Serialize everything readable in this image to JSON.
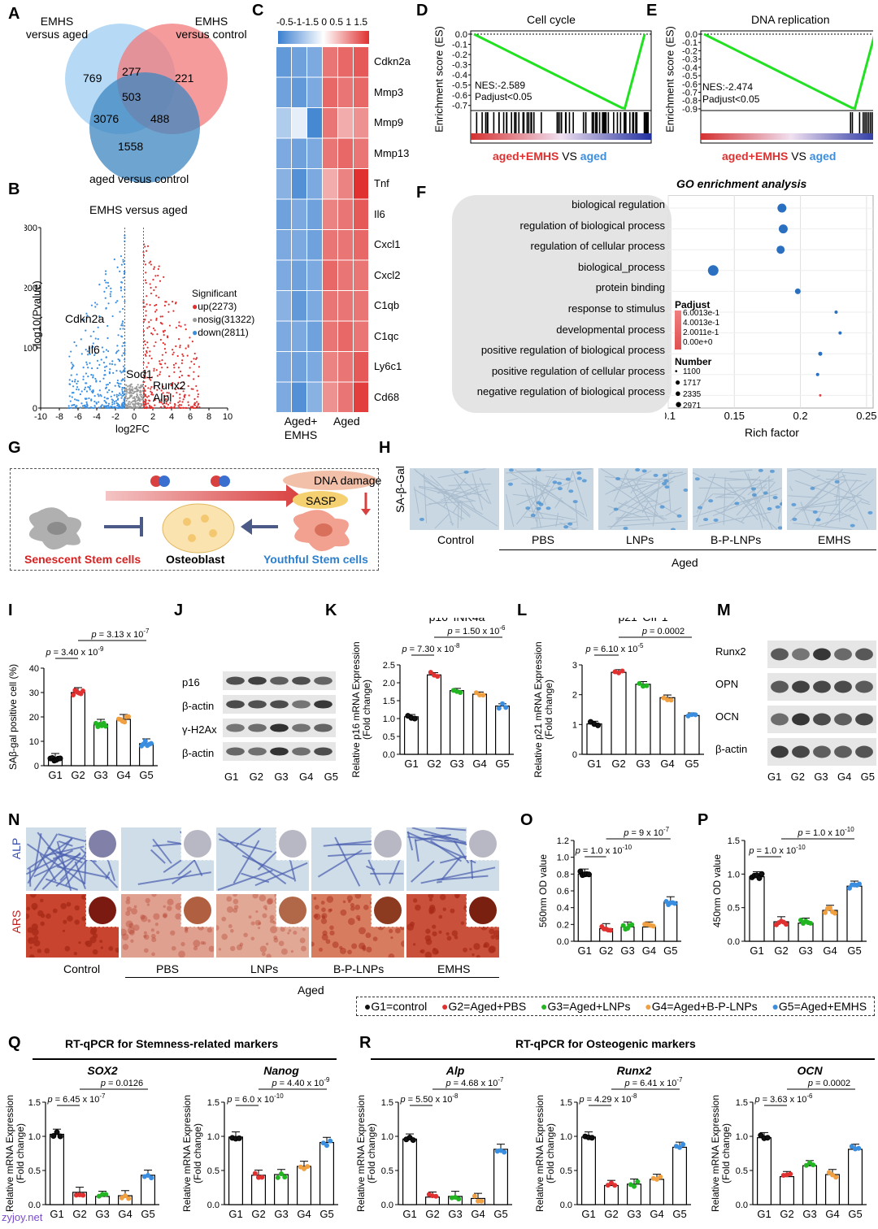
{
  "colors": {
    "red": "#e03030",
    "blue": "#3a8ee0",
    "green": "#22b522",
    "orange": "#f0a040",
    "black": "#111111",
    "venn_blue": "#a9d4f5",
    "venn_red": "#f27a7a",
    "venn_dark": "#3d86c0",
    "gsea_line": "#22e022"
  },
  "panels": {
    "A": "A",
    "B": "B",
    "C": "C",
    "D": "D",
    "E": "E",
    "F": "F",
    "G": "G",
    "H": "H",
    "I": "I",
    "J": "J",
    "K": "K",
    "L": "L",
    "M": "M",
    "N": "N",
    "O": "O",
    "P": "P",
    "Q": "Q",
    "R": "R"
  },
  "venn": {
    "label_left": "EMHS\nversus aged",
    "label_right": "EMHS\nversus control",
    "label_bottom": "aged versus control",
    "n_left": "769",
    "n_lr": "277",
    "n_right": "221",
    "n_center": "503",
    "n_lb": "3076",
    "n_rb": "488",
    "n_bottom": "1558"
  },
  "volcano": {
    "title": "EMHS versus aged",
    "ylabel": "-log10(Pvalue)",
    "xlabel": "log2FC",
    "xticks": [
      "-10",
      "-8",
      "-6",
      "-4",
      "-2",
      "0",
      "2",
      "4",
      "6",
      "8",
      "10"
    ],
    "yticks": [
      "0",
      "100",
      "200",
      "300"
    ],
    "legend_title": "Significant",
    "legend": [
      "up(2273)",
      "nosig(31322)",
      "down(2811)"
    ],
    "genes": [
      "Cdkn2a",
      "Il6",
      "Sod1",
      "Runx2",
      "Alpl"
    ]
  },
  "heatmap": {
    "scale": "-0.5-1-1.5 0 0.5 1 1.5",
    "genes": [
      "Cdkn2a",
      "Mmp3",
      "Mmp9",
      "Mmp13",
      "Tnf",
      "Il6",
      "Cxcl1",
      "Cxcl2",
      "C1qb",
      "C1qc",
      "Ly6c1",
      "Cd68"
    ],
    "group1": "Aged+\nEMHS",
    "group2": "Aged"
  },
  "gsea_d": {
    "title": "Cell cycle",
    "ylabel": "Enrichment score (ES)",
    "yticks": [
      "0.0",
      "-0.1",
      "-0.2",
      "-0.3",
      "-0.4",
      "-0.5",
      "-0.6",
      "-0.7"
    ],
    "nes": "NES:-2.589",
    "padj": "Padjust<0.05",
    "cmp1": "aged+EMHS",
    "cmp_vs": "VS",
    "cmp2": "aged"
  },
  "gsea_e": {
    "title": "DNA replication",
    "ylabel": "Enrichment score (ES)",
    "yticks": [
      "0.0",
      "-0.1",
      "-0.2",
      "-0.3",
      "-0.4",
      "-0.5",
      "-0.6",
      "-0.7",
      "-0.8",
      "-0.9"
    ],
    "nes": "NES:-2.474",
    "padj": "Padjust<0.05",
    "cmp1": "aged+EMHS",
    "cmp_vs": "VS",
    "cmp2": "aged"
  },
  "go": {
    "title": "GO enrichment analysis",
    "xlabel": "Rich factor",
    "xticks": [
      "0.1",
      "0.15",
      "0.2",
      "0.25"
    ],
    "terms": [
      "biological regulation",
      "regulation of biological process",
      "regulation of cellular process",
      "biological_process",
      "protein binding",
      "response to stimulus",
      "developmental process",
      "positive regulation of biological process",
      "positive regulation of cellular process",
      "negative regulation of biological process"
    ],
    "padj_title": "Padjust",
    "padj_ticks": [
      "6.0013e-1",
      "4.0013e-1",
      "2.0011e-1",
      "0.00e+0"
    ],
    "num_title": "Number",
    "num_ticks": [
      "1100",
      "1717",
      "2335",
      "2971"
    ]
  },
  "schematic": {
    "dna": "DNA damage",
    "sasp": "SASP",
    "senescent": "Senescent Stem cells",
    "osteoblast": "Osteoblast",
    "youthful": "Youthful Stem cells"
  },
  "sagal": {
    "ylabel": "SA-β-Gal",
    "labels": [
      "Control",
      "PBS",
      "LNPs",
      "B-P-LNPs",
      "EMHS"
    ],
    "aged": "Aged"
  },
  "panel_i": {
    "ylabel": "SAβ-gal positive cell (%)",
    "yticks": [
      "0",
      "10",
      "20",
      "30",
      "40"
    ],
    "p1": "p = 3.40 x 10-9",
    "p2": "p = 3.13 x 10-7"
  },
  "groups": [
    "G1",
    "G2",
    "G3",
    "G4",
    "G5"
  ],
  "blot_j": {
    "rows": [
      "p16",
      "β-actin",
      "γ-H2Ax",
      "β-actin"
    ]
  },
  "panel_k": {
    "title": "p16^INK4a",
    "ylabel": "Relative p16 mRNA Expression\n(Fold change)",
    "yticks": [
      "0.0",
      "0.5",
      "1.0",
      "1.5",
      "2.0",
      "2.5"
    ],
    "p1": "p = 7.30 x 10-8",
    "p2": "p = 1.50 x 10-6"
  },
  "panel_l": {
    "title": "p21^CIP1",
    "ylabel": "Relative p21 mRNA Expression\n(Fold change)",
    "yticks": [
      "0",
      "1",
      "2",
      "3"
    ],
    "p1": "p = 6.10 x 10-5",
    "p2": "p = 0.0002"
  },
  "blot_m": {
    "rows": [
      "Runx2",
      "OPN",
      "OCN",
      "β-actin"
    ]
  },
  "stain_n": {
    "row1": "ALP",
    "row2": "ARS",
    "labels": [
      "Control",
      "PBS",
      "LNPs",
      "B-P-LNPs",
      "EMHS"
    ],
    "aged": "Aged"
  },
  "panel_o": {
    "ylabel": "560nm OD value",
    "yticks": [
      "0.0",
      "0.2",
      "0.4",
      "0.6",
      "0.8",
      "1.0",
      "1.2"
    ],
    "p1": "p = 1.0 x 10-10",
    "p2": "p = 9 x 10-7"
  },
  "panel_p": {
    "ylabel": "450nm OD value",
    "yticks": [
      "0.0",
      "0.5",
      "1.0",
      "1.5"
    ],
    "p1": "p = 1.0 x 10-10",
    "p2": "p = 1.0 x 10-10"
  },
  "group_legend": [
    "G1=control",
    "G2=Aged+PBS",
    "G3=Aged+LNPs",
    "G4=Aged+B-P-LNPs",
    "G5=Aged+EMHS"
  ],
  "panel_q": {
    "title": "RT-qPCR for Stemness-related markers",
    "ylabel": "Relative mRNA Expression\n(Fold change)",
    "sox2": {
      "name": "SOX2",
      "yticks": [
        "0.0",
        "0.5",
        "1.0",
        "1.5"
      ],
      "p1": "p = 6.45 x 10-7",
      "p2": "p = 0.0126"
    },
    "nanog": {
      "name": "Nanog",
      "yticks": [
        "0.0",
        "0.5",
        "1.0",
        "1.5"
      ],
      "p1": "p = 6.0 x 10-10",
      "p2": "p = 4.40 x 10-9"
    }
  },
  "panel_r": {
    "title": "RT-qPCR for Osteogenic markers",
    "ylabel": "Relative mRNA Expression\n(Fold change)",
    "alp": {
      "name": "Alp",
      "yticks": [
        "0.0",
        "0.5",
        "1.0",
        "1.5"
      ],
      "p1": "p = 5.50 x 10-8",
      "p2": "p = 4.68 x 10-7"
    },
    "runx2": {
      "name": "Runx2",
      "yticks": [
        "0.0",
        "0.5",
        "1.0",
        "1.5"
      ],
      "p1": "p = 4.29 x 10-8",
      "p2": "p = 6.41 x 10-7"
    },
    "ocn": {
      "name": "OCN",
      "yticks": [
        "0.0",
        "0.5",
        "1.0",
        "1.5"
      ],
      "p1": "p = 3.63 x 10-6",
      "p2": "p = 0.0002"
    }
  },
  "watermark": "zyjoy.net",
  "chart_data": [
    {
      "type": "bar",
      "id": "I",
      "categories": [
        "G1",
        "G2",
        "G3",
        "G4",
        "G5"
      ],
      "values": [
        3,
        30,
        17,
        19,
        9
      ],
      "ylim": [
        0,
        40
      ]
    },
    {
      "type": "bar",
      "id": "K",
      "categories": [
        "G1",
        "G2",
        "G3",
        "G4",
        "G5"
      ],
      "values": [
        1.05,
        2.22,
        1.78,
        1.68,
        1.35
      ],
      "ylim": [
        0,
        2.5
      ]
    },
    {
      "type": "bar",
      "id": "L",
      "categories": [
        "G1",
        "G2",
        "G3",
        "G4",
        "G5"
      ],
      "values": [
        1.02,
        2.75,
        2.35,
        1.9,
        1.3
      ],
      "ylim": [
        0,
        3
      ]
    },
    {
      "type": "bar",
      "id": "O",
      "categories": [
        "G1",
        "G2",
        "G3",
        "G4",
        "G5"
      ],
      "values": [
        0.8,
        0.15,
        0.17,
        0.17,
        0.47
      ],
      "ylim": [
        0,
        1.2
      ]
    },
    {
      "type": "bar",
      "id": "P",
      "categories": [
        "G1",
        "G2",
        "G3",
        "G4",
        "G5"
      ],
      "values": [
        0.96,
        0.29,
        0.27,
        0.46,
        0.82
      ],
      "ylim": [
        0,
        1.5
      ]
    },
    {
      "type": "bar",
      "id": "SOX2",
      "categories": [
        "G1",
        "G2",
        "G3",
        "G4",
        "G5"
      ],
      "values": [
        1.03,
        0.18,
        0.12,
        0.13,
        0.43
      ],
      "ylim": [
        0,
        1.5
      ]
    },
    {
      "type": "bar",
      "id": "Nanog",
      "categories": [
        "G1",
        "G2",
        "G3",
        "G4",
        "G5"
      ],
      "values": [
        0.99,
        0.43,
        0.44,
        0.56,
        0.91
      ],
      "ylim": [
        0,
        1.5
      ]
    },
    {
      "type": "bar",
      "id": "Alp",
      "categories": [
        "G1",
        "G2",
        "G3",
        "G4",
        "G5"
      ],
      "values": [
        0.96,
        0.11,
        0.12,
        0.09,
        0.81
      ],
      "ylim": [
        0,
        1.5
      ]
    },
    {
      "type": "bar",
      "id": "Runx2",
      "categories": [
        "G1",
        "G2",
        "G3",
        "G4",
        "G5"
      ],
      "values": [
        0.99,
        0.28,
        0.3,
        0.37,
        0.84
      ],
      "ylim": [
        0,
        1.5
      ]
    },
    {
      "type": "bar",
      "id": "OCN",
      "categories": [
        "G1",
        "G2",
        "G3",
        "G4",
        "G5"
      ],
      "values": [
        0.98,
        0.41,
        0.57,
        0.44,
        0.81
      ],
      "ylim": [
        0,
        1.5
      ]
    }
  ]
}
